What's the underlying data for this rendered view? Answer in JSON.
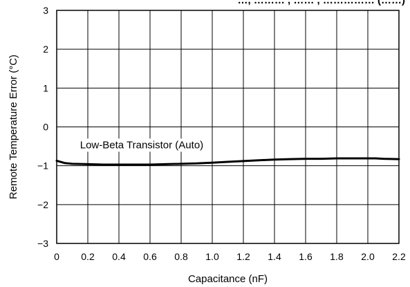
{
  "chart_data": {
    "type": "line",
    "title": "…, ……… , …… , …………… (……)",
    "xlabel": "Capacitance (nF)",
    "ylabel": "Remote Temperature Error (°C)",
    "xlim": [
      0,
      2.2
    ],
    "ylim": [
      -3,
      3
    ],
    "x_ticks": [
      "0",
      "0.2",
      "0.4",
      "0.6",
      "0.8",
      "1.0",
      "1.2",
      "1.4",
      "1.6",
      "1.8",
      "2.0",
      "2.2"
    ],
    "y_ticks": [
      "3",
      "2",
      "1",
      "0",
      "−1",
      "−2",
      "−3"
    ],
    "grid": true,
    "annotations": [
      {
        "text": "Low-Beta Transistor (Auto)",
        "x": 0.15,
        "y": -0.55
      }
    ],
    "series": [
      {
        "name": "Low-Beta Transistor (Auto)",
        "x": [
          0,
          0.05,
          0.1,
          0.2,
          0.3,
          0.4,
          0.5,
          0.6,
          0.7,
          0.8,
          0.9,
          1.0,
          1.1,
          1.2,
          1.3,
          1.4,
          1.5,
          1.6,
          1.7,
          1.8,
          1.9,
          2.0,
          2.05,
          2.1,
          2.2
        ],
        "y": [
          -0.87,
          -0.93,
          -0.95,
          -0.96,
          -0.97,
          -0.97,
          -0.97,
          -0.97,
          -0.96,
          -0.95,
          -0.94,
          -0.92,
          -0.9,
          -0.88,
          -0.86,
          -0.84,
          -0.83,
          -0.82,
          -0.82,
          -0.81,
          -0.81,
          -0.81,
          -0.81,
          -0.82,
          -0.83
        ]
      }
    ]
  }
}
